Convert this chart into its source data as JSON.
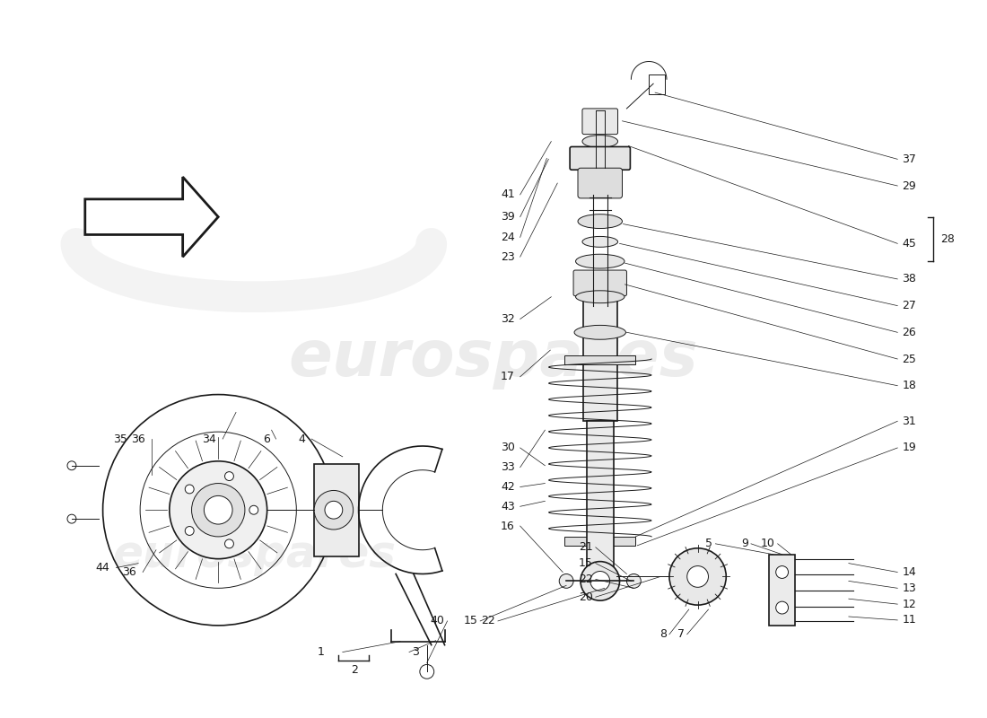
{
  "background_color": "#ffffff",
  "watermark_text": "eurospares",
  "watermark_color": "#d0d0d0",
  "line_color": "#1a1a1a",
  "text_color": "#111111"
}
